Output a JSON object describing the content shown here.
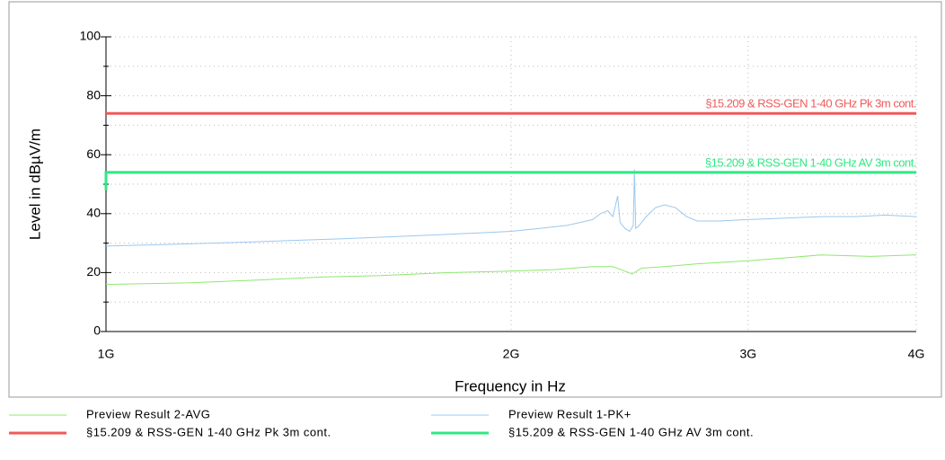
{
  "chart_data": {
    "type": "line",
    "xlabel": "Frequency in Hz",
    "ylabel": "Level in dBµV/m",
    "xscale": "log",
    "xlim": [
      1000000000,
      4000000000
    ],
    "xticks": [
      {
        "value": 1000000000,
        "label": "1G"
      },
      {
        "value": 2000000000,
        "label": "2G"
      },
      {
        "value": 3000000000,
        "label": "3G"
      },
      {
        "value": 4000000000,
        "label": "4G"
      }
    ],
    "ylim": [
      0,
      100
    ],
    "yticks": [
      0,
      20,
      40,
      60,
      80,
      100
    ],
    "yminorticks": [
      10,
      30,
      50,
      70,
      90
    ],
    "grid": true,
    "series": [
      {
        "name": "Preview Result 2-AVG",
        "color": "#8ee86e",
        "line_width": 1,
        "x": [
          1000000000,
          1150000000,
          1300000000,
          1450000000,
          1600000000,
          1800000000,
          2000000000,
          2150000000,
          2300000000,
          2380000000,
          2430000000,
          2460000000,
          2500000000,
          2600000000,
          2750000000,
          3000000000,
          3200000000,
          3400000000,
          3700000000,
          4000000000
        ],
        "values": [
          16,
          16.5,
          17.5,
          18.5,
          19,
          20,
          20.5,
          21,
          22,
          22,
          20.5,
          19.5,
          21.5,
          22,
          23,
          24,
          25,
          26,
          25.5,
          26
        ]
      },
      {
        "name": "Preview Result 1-PK+",
        "color": "#9cc8ee",
        "line_width": 1,
        "x": [
          1000000000,
          1100000000,
          1200000000,
          1300000000,
          1400000000,
          1500000000,
          1600000000,
          1700000000,
          1800000000,
          1900000000,
          2000000000,
          2100000000,
          2200000000,
          2250000000,
          2300000000,
          2330000000,
          2360000000,
          2380000000,
          2400000000,
          2410000000,
          2430000000,
          2450000000,
          2465000000,
          2470000000,
          2475000000,
          2490000000,
          2520000000,
          2560000000,
          2600000000,
          2650000000,
          2700000000,
          2750000000,
          2850000000,
          3000000000,
          3200000000,
          3400000000,
          3600000000,
          3800000000,
          4000000000
        ],
        "values": [
          29,
          29.5,
          30,
          30.5,
          31,
          31.5,
          32,
          32.5,
          33,
          33.5,
          34,
          35,
          36,
          37,
          38,
          40,
          41,
          39,
          46,
          37,
          35,
          34,
          36,
          55,
          35,
          36,
          39,
          42,
          43,
          42,
          39,
          37.5,
          37.5,
          38,
          38.5,
          39,
          39,
          39.5,
          39
        ]
      },
      {
        "name": "§15.209 & RSS-GEN 1-40 GHz Pk 3m cont.",
        "color": "#f05a5a",
        "line_width": 3,
        "x": [
          1000000000,
          4000000000
        ],
        "values": [
          74,
          74
        ]
      },
      {
        "name": "§15.209 & RSS-GEN 1-40 GHz AV 3m cont.",
        "color": "#2fe884",
        "line_width": 3,
        "x": [
          1000000000,
          1000000000,
          4000000000
        ],
        "values": [
          48,
          54,
          54
        ]
      }
    ]
  }
}
